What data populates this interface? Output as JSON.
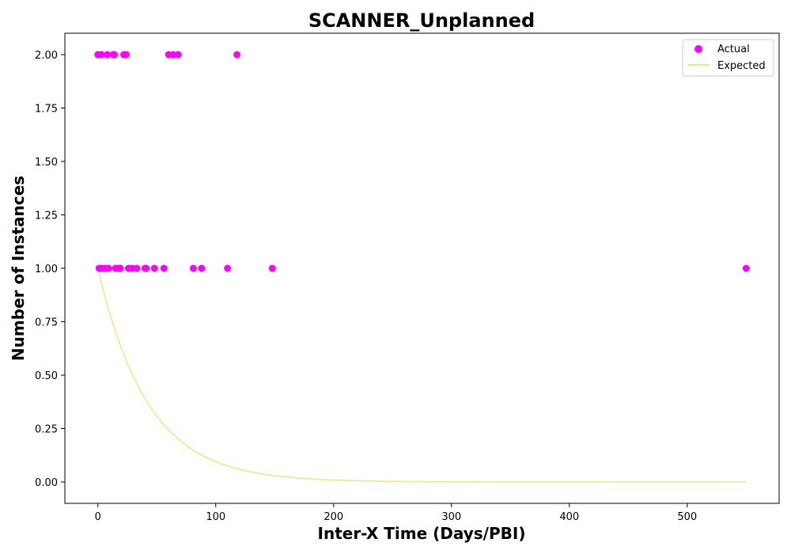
{
  "chart_data": {
    "type": "scatter",
    "title": "SCANNER_Unplanned",
    "xlabel": "Inter-X Time (Days/PBI)",
    "ylabel": "Number of Instances",
    "xlim": [
      -28,
      578
    ],
    "ylim": [
      -0.1,
      2.1
    ],
    "xticks": [
      0,
      100,
      200,
      300,
      400,
      500
    ],
    "xtick_labels": [
      "0",
      "100",
      "200",
      "300",
      "400",
      "500"
    ],
    "yticks": [
      0.0,
      0.25,
      0.5,
      0.75,
      1.0,
      1.25,
      1.5,
      1.75,
      2.0
    ],
    "ytick_labels": [
      "0.00",
      "0.25",
      "0.50",
      "0.75",
      "1.00",
      "1.25",
      "1.50",
      "1.75",
      "2.00"
    ],
    "grid": false,
    "legend_position": "top-right",
    "series": [
      {
        "name": "Actual",
        "kind": "scatter",
        "color": "#ff00ff",
        "points": [
          [
            0,
            2
          ],
          [
            3,
            2
          ],
          [
            8,
            2
          ],
          [
            13,
            2
          ],
          [
            14,
            2
          ],
          [
            22,
            2
          ],
          [
            24,
            2
          ],
          [
            60,
            2
          ],
          [
            64,
            2
          ],
          [
            68,
            2
          ],
          [
            118,
            2
          ],
          [
            1,
            1
          ],
          [
            3,
            1
          ],
          [
            6,
            1
          ],
          [
            9,
            1
          ],
          [
            15,
            1
          ],
          [
            17,
            1
          ],
          [
            19,
            1
          ],
          [
            26,
            1
          ],
          [
            29,
            1
          ],
          [
            33,
            1
          ],
          [
            40,
            1
          ],
          [
            41,
            1
          ],
          [
            48,
            1
          ],
          [
            56,
            1
          ],
          [
            81,
            1
          ],
          [
            88,
            1
          ],
          [
            110,
            1
          ],
          [
            148,
            1
          ],
          [
            550,
            1
          ]
        ]
      },
      {
        "name": "Expected",
        "kind": "line",
        "color": "#f0e68c",
        "function": "exp_decay",
        "amplitude": 1.0,
        "rate": 0.0235,
        "x_range": [
          0,
          550
        ]
      }
    ]
  }
}
